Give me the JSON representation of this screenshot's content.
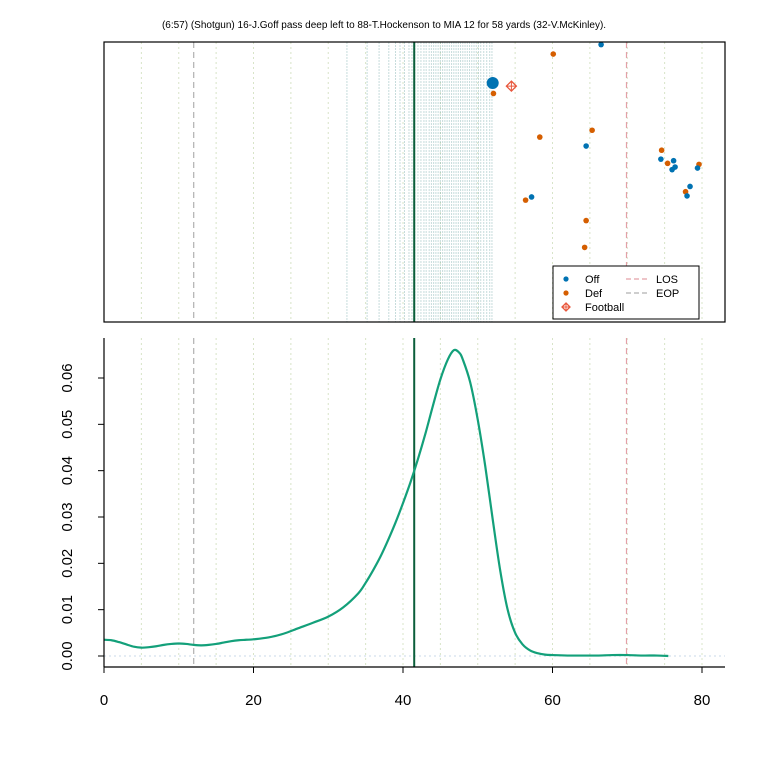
{
  "title": "(6:57) (Shotgun) 16-J.Goff pass deep left to 88-T.Hockenson to MIA 12 for 58 yards (32-V.McKinley).",
  "colors": {
    "off": "#0072B2",
    "def": "#D55E00",
    "football": "#E8573C",
    "los": "#E3A0A8",
    "eop": "#B0B0B0",
    "marker_line": "#0B5E3A",
    "density": "#13A07A",
    "yard_lines": "#D8E4C8",
    "time_lines": "#5B9A9A"
  },
  "chart_data": [
    {
      "type": "scatter",
      "panel": "top",
      "xlim": [
        0,
        80
      ],
      "ylim": [
        0,
        53.3
      ],
      "legend_position": "bottom-right",
      "legend": {
        "off": "Off",
        "def": "Def",
        "football": "Football",
        "los": "LOS",
        "eop": "EOP"
      },
      "los_x": 69.9,
      "eop_x": 12,
      "selected_x": 41.5,
      "time_marks": [
        32.5,
        35.2,
        36.8,
        38.1,
        39.0,
        39.6,
        40.2,
        40.8,
        41.2,
        41.6,
        42.0,
        42.4,
        42.8,
        43.1,
        43.5,
        43.8,
        44.1,
        44.4,
        44.7,
        45.0,
        45.3,
        45.6,
        45.9,
        46.2,
        46.5,
        46.8,
        47.1,
        47.4,
        47.7,
        48.0,
        48.3,
        48.6,
        48.9,
        49.2,
        49.5,
        49.8,
        50.1,
        50.4,
        50.8,
        51.2,
        51.6,
        51.9
      ],
      "offense": [
        {
          "x": 52.0,
          "y": 45.5,
          "highlight": true
        },
        {
          "x": 66.5,
          "y": 52.8
        },
        {
          "x": 64.5,
          "y": 33.5
        },
        {
          "x": 74.5,
          "y": 31.0
        },
        {
          "x": 76.2,
          "y": 30.7
        },
        {
          "x": 76.0,
          "y": 29.0
        },
        {
          "x": 76.4,
          "y": 29.5
        },
        {
          "x": 79.4,
          "y": 29.3
        },
        {
          "x": 78.4,
          "y": 25.8
        },
        {
          "x": 78.0,
          "y": 24.0
        },
        {
          "x": 57.2,
          "y": 23.8
        }
      ],
      "defense": [
        {
          "x": 52.1,
          "y": 43.5
        },
        {
          "x": 60.1,
          "y": 51.0
        },
        {
          "x": 65.3,
          "y": 36.5
        },
        {
          "x": 58.3,
          "y": 35.2
        },
        {
          "x": 74.6,
          "y": 32.7
        },
        {
          "x": 75.4,
          "y": 30.2
        },
        {
          "x": 79.6,
          "y": 30.0
        },
        {
          "x": 77.8,
          "y": 24.8
        },
        {
          "x": 56.4,
          "y": 23.2
        },
        {
          "x": 64.5,
          "y": 19.3
        },
        {
          "x": 64.3,
          "y": 14.2
        }
      ],
      "football": {
        "x": 54.5,
        "y": 44.9
      }
    },
    {
      "type": "line",
      "panel": "bottom",
      "xlim": [
        0,
        80
      ],
      "ylim": [
        0,
        0.066
      ],
      "x_ticks": [
        0,
        20,
        40,
        60,
        80
      ],
      "y_ticks": [
        "0.00",
        "0.01",
        "0.02",
        "0.03",
        "0.04",
        "0.05",
        "0.06"
      ],
      "los_x": 69.9,
      "eop_x": 12,
      "selected_x": 41.5,
      "density": {
        "x": [
          0,
          1,
          2,
          3,
          4,
          5,
          6,
          7,
          8,
          9,
          10,
          11,
          12,
          13,
          14,
          15,
          16,
          17,
          18,
          19,
          20,
          22,
          24,
          26,
          28,
          30,
          32,
          34,
          35,
          36,
          37,
          38,
          39,
          40,
          41,
          42,
          43,
          44,
          45,
          46,
          46.8,
          47.5,
          48,
          49,
          50,
          51,
          52,
          53,
          54,
          55,
          56,
          57,
          58,
          59,
          60,
          62,
          64,
          66,
          68,
          70,
          72,
          74,
          75.5
        ],
        "y": [
          0.0035,
          0.0034,
          0.003,
          0.0025,
          0.002,
          0.0018,
          0.0019,
          0.0021,
          0.0024,
          0.0026,
          0.0027,
          0.0026,
          0.0024,
          0.0023,
          0.0024,
          0.0026,
          0.0029,
          0.0032,
          0.0034,
          0.0035,
          0.0036,
          0.004,
          0.0048,
          0.006,
          0.0072,
          0.0085,
          0.0105,
          0.0135,
          0.0158,
          0.0185,
          0.0215,
          0.025,
          0.0288,
          0.033,
          0.0375,
          0.0425,
          0.048,
          0.054,
          0.0597,
          0.064,
          0.066,
          0.0655,
          0.064,
          0.059,
          0.051,
          0.041,
          0.0295,
          0.0185,
          0.01,
          0.005,
          0.0025,
          0.0012,
          0.0006,
          0.0003,
          0.0002,
          0.0001,
          0.0001,
          0.0001,
          0.0002,
          0.0002,
          0.0001,
          0.0001,
          0.0
        ]
      }
    }
  ]
}
